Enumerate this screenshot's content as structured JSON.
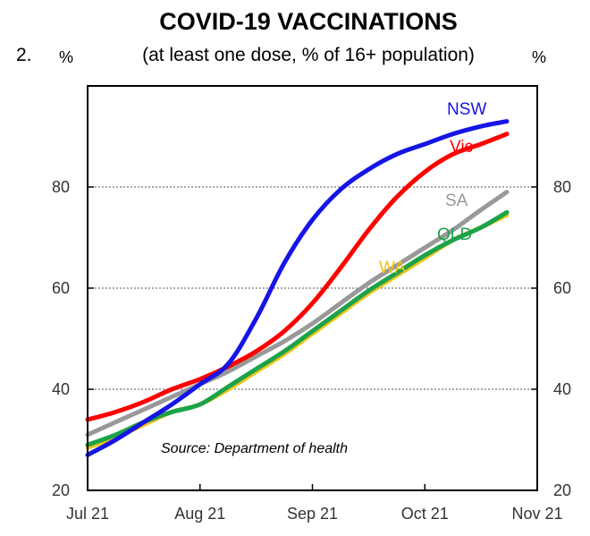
{
  "chart_data": {
    "type": "line",
    "figure_number": "2.",
    "title": "COVID-19 VACCINATIONS",
    "subtitle": "(at least one dose, % of 16+ population)",
    "ylabel_left": "%",
    "ylabel_right": "%",
    "source": "Source: Department of health",
    "xlim": [
      0,
      4
    ],
    "ylim": [
      20,
      100
    ],
    "x_ticks": [
      {
        "x": 0,
        "label": "Jul 21"
      },
      {
        "x": 1,
        "label": "Aug 21"
      },
      {
        "x": 2,
        "label": "Sep 21"
      },
      {
        "x": 3,
        "label": "Oct 21"
      },
      {
        "x": 4,
        "label": "Nov 21"
      }
    ],
    "y_ticks": [
      20,
      40,
      60,
      80
    ],
    "gridlines_y": [
      40,
      60,
      80
    ],
    "series": [
      {
        "name": "WA",
        "color": "#f2c318",
        "x": [
          0,
          0.25,
          0.5,
          0.75,
          1.0,
          1.25,
          1.5,
          1.75,
          2.0,
          2.25,
          2.5,
          2.75,
          3.0,
          3.25,
          3.5,
          3.73
        ],
        "y": [
          28.5,
          30.5,
          33,
          35.5,
          37,
          40,
          43.5,
          47,
          51,
          55,
          59,
          62.5,
          66,
          69.5,
          72,
          74.5
        ]
      },
      {
        "name": "QLD",
        "color": "#1ca34a",
        "x": [
          0,
          0.25,
          0.5,
          0.75,
          1.0,
          1.25,
          1.5,
          1.75,
          2.0,
          2.25,
          2.5,
          2.75,
          3.0,
          3.25,
          3.5,
          3.73
        ],
        "y": [
          29,
          31,
          33.5,
          35.5,
          37,
          40.5,
          44,
          47.5,
          51.5,
          55.5,
          59.5,
          63,
          66.5,
          69.5,
          72,
          75
        ]
      },
      {
        "name": "SA",
        "color": "#999999",
        "x": [
          0,
          0.25,
          0.5,
          0.75,
          1.0,
          1.25,
          1.5,
          1.75,
          2.0,
          2.25,
          2.5,
          2.75,
          3.0,
          3.25,
          3.5,
          3.73
        ],
        "y": [
          31,
          33.5,
          36,
          38.5,
          41,
          43.5,
          46.5,
          49.5,
          53,
          57,
          61,
          64.5,
          68,
          71.5,
          75.5,
          79
        ]
      },
      {
        "name": "Vic",
        "color": "#ff0000",
        "x": [
          0,
          0.25,
          0.5,
          0.75,
          1.0,
          1.25,
          1.5,
          1.75,
          2.0,
          2.25,
          2.5,
          2.75,
          3.0,
          3.25,
          3.5,
          3.73
        ],
        "y": [
          34,
          35.5,
          37.5,
          40,
          42,
          44.5,
          47.5,
          51.5,
          57,
          64,
          71.5,
          78,
          83,
          86.5,
          88.5,
          90.5
        ]
      },
      {
        "name": "NSW",
        "color": "#1515e6",
        "x": [
          0,
          0.25,
          0.5,
          0.75,
          1.0,
          1.25,
          1.5,
          1.75,
          2.0,
          2.25,
          2.5,
          2.75,
          3.0,
          3.25,
          3.5,
          3.73
        ],
        "y": [
          27,
          30,
          33.5,
          37,
          41,
          45,
          54,
          65,
          73.5,
          79.5,
          83.5,
          86.5,
          88.5,
          90.5,
          92,
          93
        ]
      }
    ],
    "legend": "inline-labels-right"
  }
}
